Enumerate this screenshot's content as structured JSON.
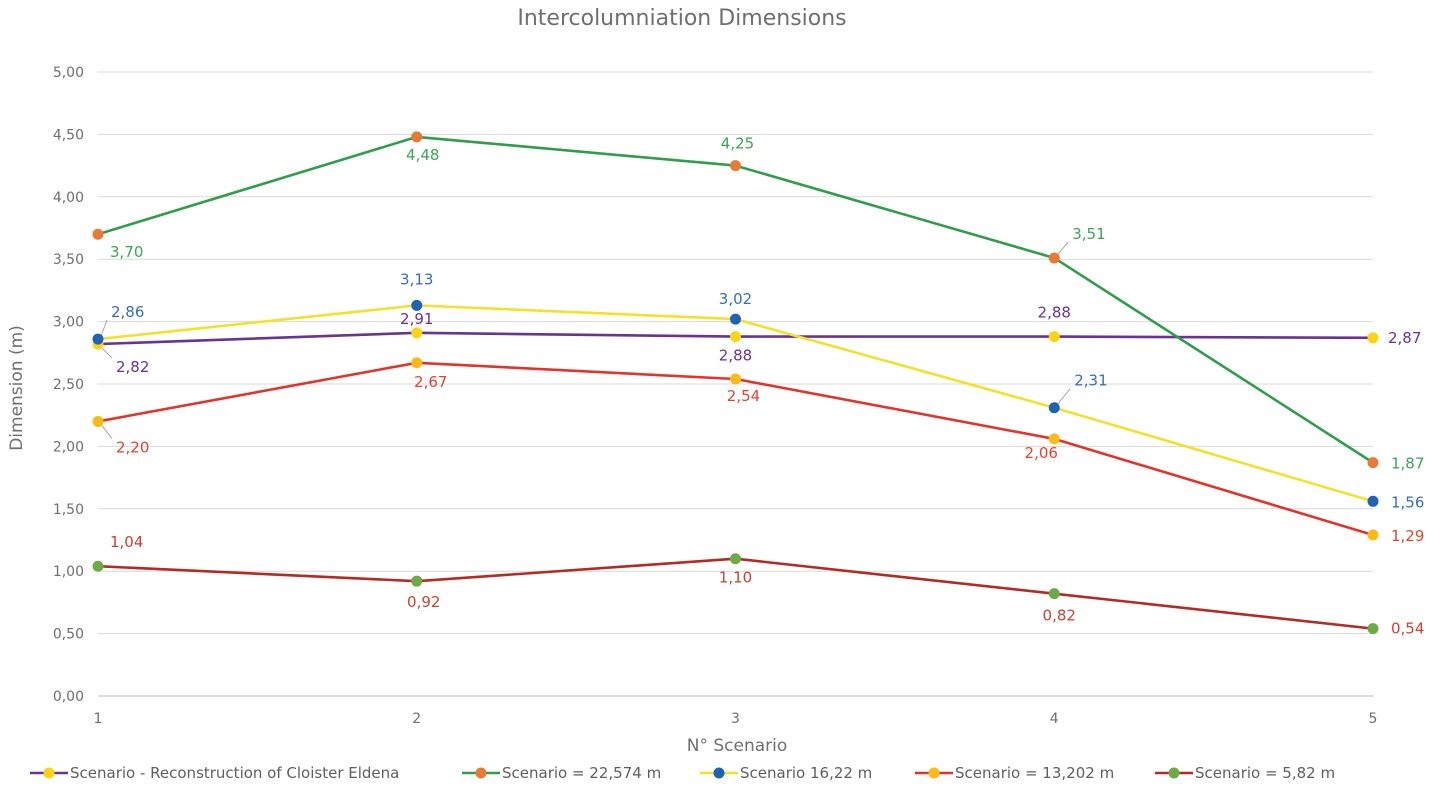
{
  "chart_data": {
    "type": "line",
    "title": "Intercolumniation Dimensions",
    "xlabel": "N° Scenario",
    "ylabel": "Dimension (m)",
    "x": [
      1,
      2,
      3,
      4,
      5
    ],
    "x_tick_labels": [
      "1",
      "2",
      "3",
      "4",
      "5"
    ],
    "ylim": [
      0,
      5
    ],
    "y_ticks": [
      0,
      0.5,
      1,
      1.5,
      2,
      2.5,
      3,
      3.5,
      4,
      4.5,
      5
    ],
    "y_tick_labels": [
      "0,00",
      "0,50",
      "1,00",
      "1,50",
      "2,00",
      "2,50",
      "3,00",
      "3,50",
      "4,00",
      "4,50",
      "5,00"
    ],
    "grid": true,
    "legend_position": "bottom",
    "series": [
      {
        "name": "Scenario - Reconstruction of Cloister Eldena",
        "values": [
          2.82,
          2.91,
          2.88,
          2.88,
          2.87
        ],
        "labels": [
          "2,82",
          "2,91",
          "2,88",
          "2,88",
          "2,87"
        ],
        "line_color": "#6a3293",
        "marker_color": "#fcd411",
        "label_color": "#6a3293"
      },
      {
        "name": "Scenario = 22,574 m",
        "values": [
          3.7,
          4.48,
          4.25,
          3.51,
          1.87
        ],
        "labels": [
          "3,70",
          "4,48",
          "4,25",
          "3,51",
          "1,87"
        ],
        "line_color": "#2f9e4a",
        "marker_color": "#e87a36",
        "label_color": "#3aa655"
      },
      {
        "name": "Scenario 16,22 m",
        "values": [
          2.86,
          3.13,
          3.02,
          2.31,
          1.56
        ],
        "labels": [
          "2,86",
          "3,13",
          "3,02",
          "2,31",
          "1,56"
        ],
        "line_color": "#f4e12a",
        "marker_color": "#1f63b4",
        "label_color": "#3470b5"
      },
      {
        "name": "Scenario = 13,202 m",
        "values": [
          2.2,
          2.67,
          2.54,
          2.06,
          1.29
        ],
        "labels": [
          "2,20",
          "2,67",
          "2,54",
          "2,06",
          "1,29"
        ],
        "line_color": "#e3342b",
        "marker_color": "#fbbb17",
        "label_color": "#e3432f"
      },
      {
        "name": "Scenario = 5,82 m",
        "values": [
          1.04,
          0.92,
          1.1,
          0.82,
          0.54
        ],
        "labels": [
          "1,04",
          "0,92",
          "1,10",
          "0,82",
          "0,54"
        ],
        "line_color": "#b52a22",
        "marker_color": "#6cac45",
        "label_color": "#d2402d"
      }
    ]
  }
}
